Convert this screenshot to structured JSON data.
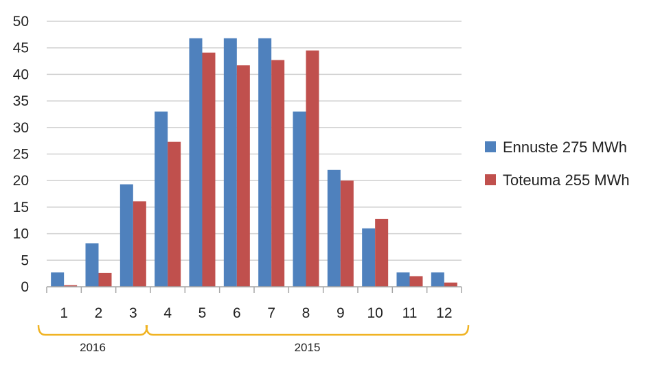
{
  "chart_data": {
    "type": "bar",
    "categories": [
      "1",
      "2",
      "3",
      "4",
      "5",
      "6",
      "7",
      "8",
      "9",
      "10",
      "11",
      "12"
    ],
    "series": [
      {
        "name": "Ennuste 275 MWh",
        "color": "#4f81bd",
        "values": [
          2.7,
          8.2,
          19.3,
          33,
          46.8,
          46.8,
          46.8,
          33,
          22,
          11,
          2.7,
          2.7
        ]
      },
      {
        "name": "Toteuma 255 MWh",
        "color": "#c0504d",
        "values": [
          0.3,
          2.6,
          16.1,
          27.3,
          44.1,
          41.7,
          42.7,
          44.5,
          20,
          12.8,
          2,
          0.8
        ]
      }
    ],
    "ylim": [
      0,
      50
    ],
    "yticks": [
      "0",
      "5",
      "10",
      "15",
      "20",
      "25",
      "30",
      "35",
      "40",
      "45",
      "50"
    ],
    "grid": true,
    "legend_position": "right",
    "year_groups": [
      {
        "label": "2016",
        "from": "1",
        "to": "3"
      },
      {
        "label": "2015",
        "from": "4",
        "to": "12"
      }
    ],
    "bracket_color": "#f0b323"
  }
}
